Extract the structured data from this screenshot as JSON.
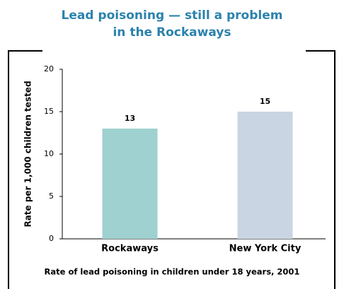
{
  "chart_data": {
    "type": "bar",
    "title": [
      "Lead poisoning — still a problem",
      "in the Rockaways"
    ],
    "ylabel": "Rate per 1,000 children tested",
    "note": "Rate of lead poisoning in children under 18 years, 2001",
    "categories": [
      "Rockaways",
      "New York City"
    ],
    "values": [
      13,
      15
    ],
    "colors": [
      "#9ed1cf",
      "#c9d5e2"
    ],
    "ylim": [
      0,
      20
    ],
    "yticks": [
      0,
      5,
      10,
      15,
      20
    ],
    "grid": false
  }
}
